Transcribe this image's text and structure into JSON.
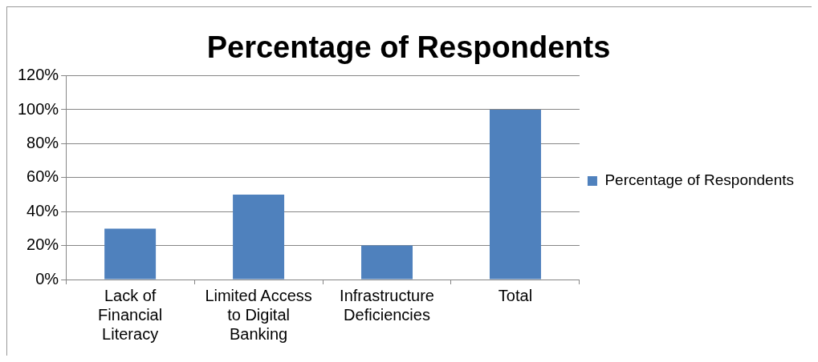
{
  "chart_data": {
    "type": "bar",
    "title": "Percentage of Respondents",
    "categories": [
      "Lack of Financial Literacy",
      "Limited Access to Digital Banking",
      "Infrastructure Deficiencies",
      "Total"
    ],
    "series": [
      {
        "name": "Percentage of Respondents",
        "color": "#4f81bd",
        "values": [
          30,
          50,
          20,
          100
        ]
      }
    ],
    "ylim": [
      0,
      120
    ],
    "yticks": [
      {
        "value": 0,
        "label": "0%"
      },
      {
        "value": 20,
        "label": "20%"
      },
      {
        "value": 40,
        "label": "40%"
      },
      {
        "value": 60,
        "label": "60%"
      },
      {
        "value": 80,
        "label": "80%"
      },
      {
        "value": 100,
        "label": "100%"
      },
      {
        "value": 120,
        "label": "120%"
      }
    ],
    "grid": "y",
    "legend": "right"
  }
}
